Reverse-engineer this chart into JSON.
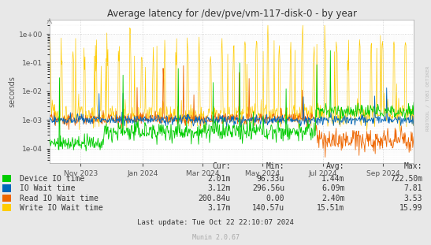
{
  "title": "Average latency for /dev/pve/vm-117-disk-0 - by year",
  "ylabel": "seconds",
  "background_color": "#e8e8e8",
  "plot_bg_color": "#ffffff",
  "grid_color": "#cccccc",
  "title_color": "#333333",
  "watermark": "RRDTOOL / TOBI OETIKER",
  "munin_version": "Munin 2.0.67",
  "last_update": "Last update: Tue Oct 22 22:10:07 2024",
  "series": [
    {
      "label": "Device IO time",
      "color": "#00cc00",
      "cur": "2.01m",
      "min": "96.33u",
      "avg": "1.44m",
      "max": "722.50m"
    },
    {
      "label": "IO Wait time",
      "color": "#0066bb",
      "cur": "3.12m",
      "min": "296.56u",
      "avg": "6.09m",
      "max": "7.81"
    },
    {
      "label": "Read IO Wait time",
      "color": "#ee6600",
      "cur": "200.84u",
      "min": "0.00",
      "avg": "2.40m",
      "max": "3.53"
    },
    {
      "label": "Write IO Wait time",
      "color": "#ffcc00",
      "cur": "3.17m",
      "min": "140.57u",
      "avg": "15.51m",
      "max": "15.99"
    }
  ],
  "xtick_labels": [
    "Nov 2023",
    "Jan 2024",
    "Mar 2024",
    "May 2024",
    "Jul 2024",
    "Sep 2024"
  ],
  "xtick_pos": [
    0.085,
    0.255,
    0.42,
    0.585,
    0.75,
    0.915
  ],
  "col_headers": [
    "Cur:",
    "Min:",
    "Avg:",
    "Max:"
  ],
  "col_values": [
    [
      "2.01m",
      "96.33u",
      "1.44m",
      "722.50m"
    ],
    [
      "3.12m",
      "296.56u",
      "6.09m",
      "7.81"
    ],
    [
      "200.84u",
      "0.00",
      "2.40m",
      "3.53"
    ],
    [
      "3.17m",
      "140.57u",
      "15.51m",
      "15.99"
    ]
  ]
}
